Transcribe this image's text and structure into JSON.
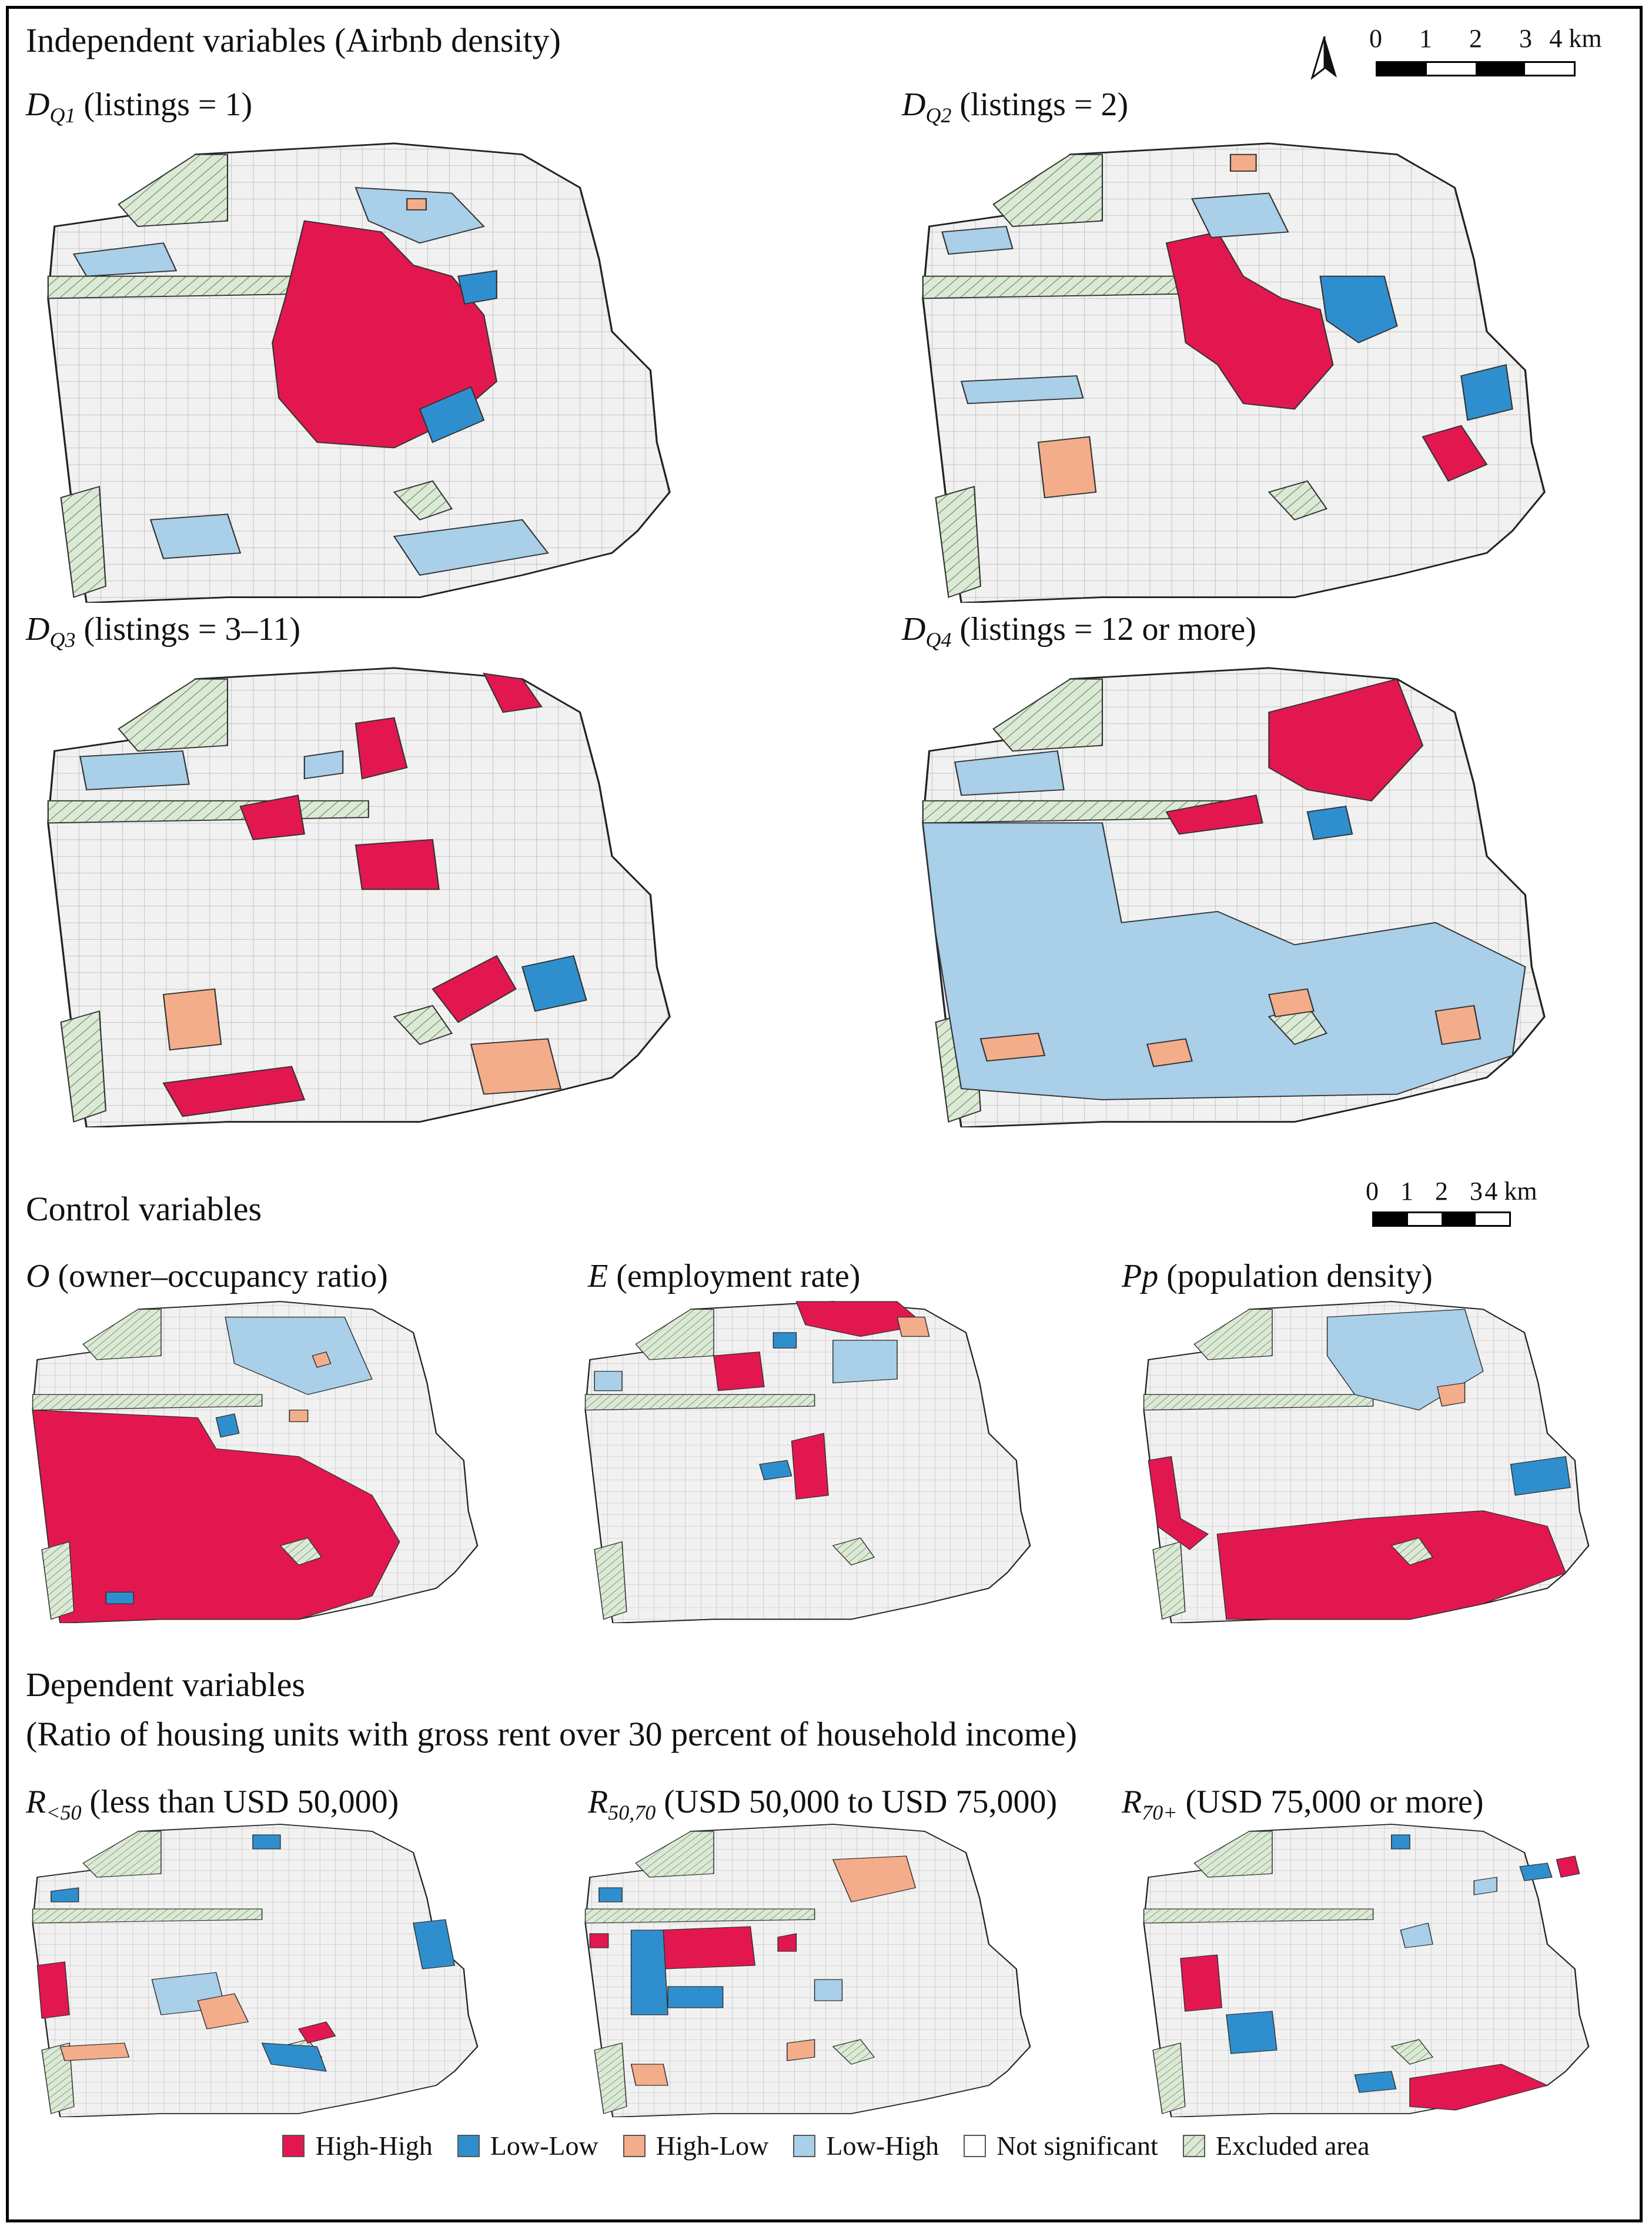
{
  "colors": {
    "high_high": "#e3174f",
    "low_low": "#2f8fce",
    "high_low": "#f4ad8a",
    "low_high": "#a9cfe9",
    "not_significant": "#f1f1f1",
    "excluded": "#dce9d6"
  },
  "sections": {
    "independent": "Independent variables (Airbnb density)",
    "control": "Control variables",
    "dependent_line1": "Dependent variables",
    "dependent_line2": "(Ratio of housing units with gross rent over 30 percent of household income)"
  },
  "scale_bar": {
    "ticks": [
      "0",
      "1",
      "2",
      "3",
      "4 km"
    ]
  },
  "panels": {
    "dq1": {
      "sym": "D",
      "sub": "Q1",
      "desc": " (listings = 1)"
    },
    "dq2": {
      "sym": "D",
      "sub": "Q2",
      "desc": " (listings = 2)"
    },
    "dq3": {
      "sym": "D",
      "sub": "Q3",
      "desc": " (listings = 3–11)"
    },
    "dq4": {
      "sym": "D",
      "sub": "Q4",
      "desc": " (listings = 12 or more)"
    },
    "o": {
      "sym": "O",
      "sub": "",
      "desc": " (owner–occupancy ratio)"
    },
    "e": {
      "sym": "E",
      "sub": "",
      "desc": " (employment rate)"
    },
    "pp": {
      "sym": "Pp",
      "sub": "",
      "desc": " (population density)"
    },
    "r50": {
      "sym": "R",
      "sub": "<50",
      "desc": " (less than USD 50,000)"
    },
    "r5070": {
      "sym": "R",
      "sub": "50,70",
      "desc": " (USD 50,000 to USD 75,000)"
    },
    "r70": {
      "sym": "R",
      "sub": "70+",
      "desc": " (USD 75,000 or more)"
    }
  },
  "legend": [
    {
      "key": "high_high",
      "label": "High-High"
    },
    {
      "key": "low_low",
      "label": "Low-Low"
    },
    {
      "key": "high_low",
      "label": "High-Low"
    },
    {
      "key": "low_high",
      "label": "Low-High"
    },
    {
      "key": "not_significant",
      "label": "Not significant"
    },
    {
      "key": "excluded",
      "label": "Excluded area"
    }
  ]
}
